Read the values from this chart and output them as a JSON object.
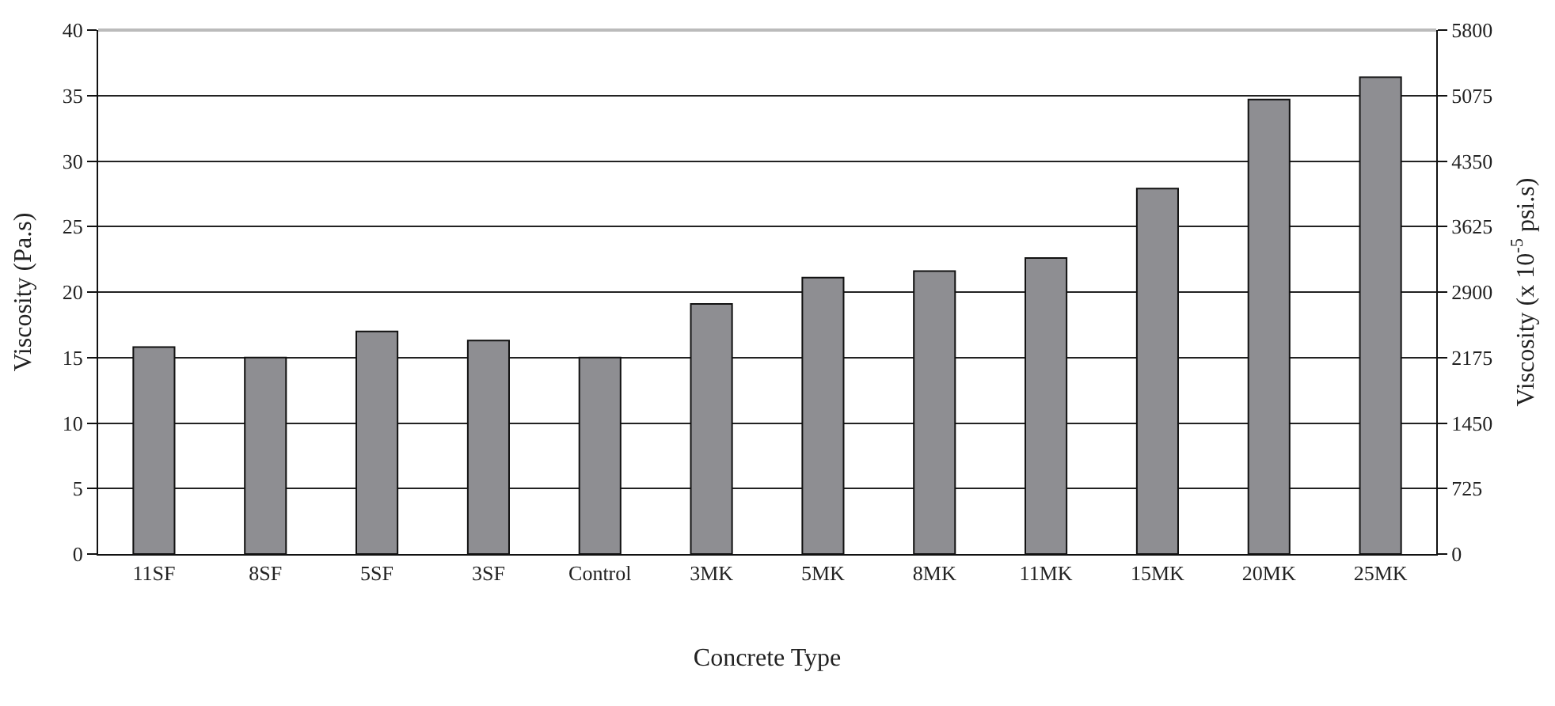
{
  "chart_data": {
    "type": "bar",
    "xlabel": "Concrete Type",
    "ylabel": "Viscosity (Pa.s)",
    "y2label": "Viscosity (x 10$^{-5}$ psi.s)",
    "categories": [
      "11SF",
      "8SF",
      "5SF",
      "3SF",
      "Control",
      "3MK",
      "5MK",
      "8MK",
      "11MK",
      "15MK",
      "20MK",
      "25MK"
    ],
    "values": [
      15.8,
      15.0,
      17.0,
      16.3,
      15.0,
      19.1,
      21.1,
      21.6,
      22.6,
      27.9,
      34.7,
      36.4
    ],
    "color": "#8e8e92",
    "ylim": [
      0,
      40
    ],
    "yticks": [
      0,
      5,
      10,
      15,
      20,
      25,
      30,
      35,
      40
    ],
    "y2lim": [
      0,
      5800
    ],
    "y2ticks": [
      0,
      725,
      1450,
      2175,
      2900,
      3625,
      4350,
      5075,
      5800
    ],
    "grid": "y"
  }
}
